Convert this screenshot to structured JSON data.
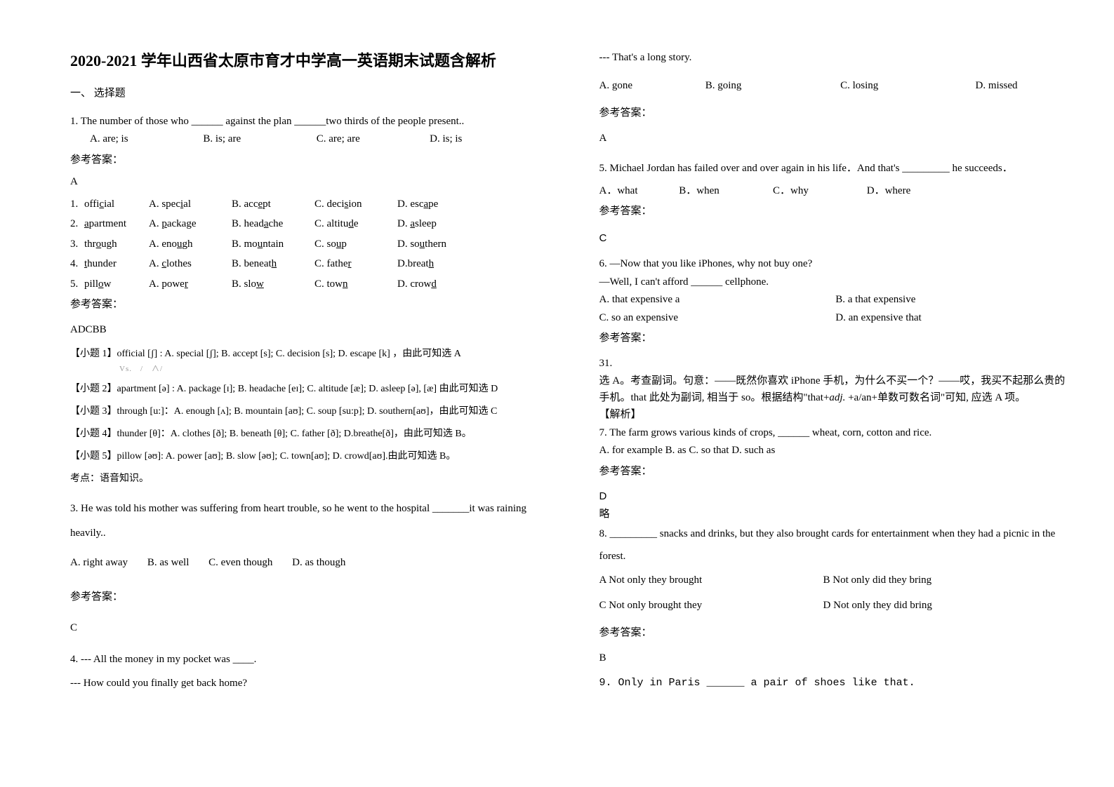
{
  "left": {
    "title": "2020-2021 学年山西省太原市育才中学高一英语期末试题含解析",
    "section1": "一、 选择题",
    "q1": {
      "stem": "1. The number of those who ______ against the plan ______two thirds of the people present..",
      "opts": [
        "A. are; is",
        "B. is; are",
        "C. are; are",
        "D. is; is"
      ],
      "ans_label": "参考答案：",
      "ans": "A"
    },
    "phon": {
      "rows": [
        {
          "n": "1.",
          "w": "official",
          "o": [
            "A. special",
            "B. accept",
            "C. decision",
            "D. escape"
          ],
          "u": [
            4,
            3,
            4,
            3
          ]
        },
        {
          "n": "2.",
          "w": "apartment",
          "o": [
            "A. package",
            "B. headache",
            "C. altitude",
            "D. asleep"
          ],
          "u": [
            0,
            4,
            6,
            0
          ]
        },
        {
          "n": "3.",
          "w": "through",
          "o": [
            "A. enough",
            "B. mountain",
            "C. soup",
            "D. southern"
          ],
          "u": [
            3,
            2,
            2,
            2
          ]
        },
        {
          "n": "4.",
          "w": "thunder",
          "o": [
            "A. clothes",
            "B. beneath",
            "C. father",
            "D.breath"
          ],
          "u": [
            0,
            6,
            5,
            5
          ]
        },
        {
          "n": "5.",
          "w": "pillow",
          "o": [
            "A. power",
            "B. slow",
            "C. town",
            "D. crowd"
          ],
          "u": [
            4,
            3,
            3,
            4
          ]
        }
      ],
      "ans_label": "参考答案：",
      "ans": "ADCBB",
      "explains": [
        "【小题 1】official [ʃ] : A. special [ʃ];   B. accept [s]; C. decision [s]; D. escape [k] ，由此可知选 A",
        "【小题 2】apartment [ə] : A. package [ɪ]; B. headache [eɪ]; C. altitude [æ]; D. asleep [ə], [æ] 由此可知选 D",
        "【小题 3】through [u:]：A. enough [ʌ]; B. mountain [aʊ]; C. soup [su:p]; D. southern[aʊ]，由此可知选 C",
        "【小题 4】thunder [θ]：A. clothes [ð]; B. beneath [θ];   C. father [ð];   D.breathe[ð]，由此可知选 B。",
        "【小题 5】pillow [əʊ]: A. power [aʊ]; B. slow [əʊ];   C. town[aʊ]; D. crowd[aʊ].由此可知选 B。"
      ],
      "note": "考点：语音知识。"
    },
    "q3": {
      "stem": "3. He was told his mother was suffering from heart trouble, so he went to the hospital _______it was raining heavily..",
      "opts": [
        "A. right away",
        "B. as well",
        "C. even though",
        "D. as though"
      ],
      "ans_label": "参考答案：",
      "ans": "C"
    },
    "q4": {
      "line1": "4. --- All the money in my pocket was ____.",
      "line2": "--- How could you finally get back home?"
    }
  },
  "right": {
    "q4cont": {
      "line3": "--- That's a long story.",
      "opts": [
        "A. gone",
        "B. going",
        "C. losing",
        "D. missed"
      ],
      "ans_label": "参考答案：",
      "ans": "A"
    },
    "q5": {
      "stem": "5. Michael Jordan has failed over and over again in his life．And that's _________ he succeeds．",
      "opts": [
        "A．what",
        "B．when",
        "C．why",
        "D．where"
      ],
      "ans_label": "参考答案：",
      "ans": "C"
    },
    "q6": {
      "l1": "6. —Now that you like iPhones, why not buy one?",
      "l2": "—Well, I can't afford ______ cellphone.",
      "optsL": [
        "A. that expensive a",
        "C. so an expensive"
      ],
      "optsR": [
        "B. a that expensive",
        "D. an expensive that"
      ],
      "ans_label": "参考答案：",
      "num": "31.",
      "exp1": "选 A。考查副词。句意：——既然你喜欢 iPhone 手机，为什么不买一个？——哎，我买不起那么贵的手机。that 此处为副词, 相当于 so。根据结构\"that+adj. +a/an+单数可数名词\"可知, 应选 A 项。",
      "exp2": "【解析】"
    },
    "q7": {
      "stem": "7. The farm grows various kinds of crops, ______ wheat, corn, cotton and rice.",
      "opts": " A. for example     B. as      C. so that      D. such as",
      "ans_label": "参考答案：",
      "ans": "D",
      "omit": "略"
    },
    "q8": {
      "stem": "8. _________ snacks and drinks, but they also brought cards for entertainment when they had a picnic in the forest.",
      "optsRow1": [
        "A Not only they brought",
        "B Not only did they bring"
      ],
      "optsRow2": [
        "C Not only brought they",
        "D Not only they did bring"
      ],
      "ans_label": "参考答案：",
      "ans": "B"
    },
    "q9": {
      "stem": "9. Only in Paris ______ a pair of shoes like that."
    }
  }
}
